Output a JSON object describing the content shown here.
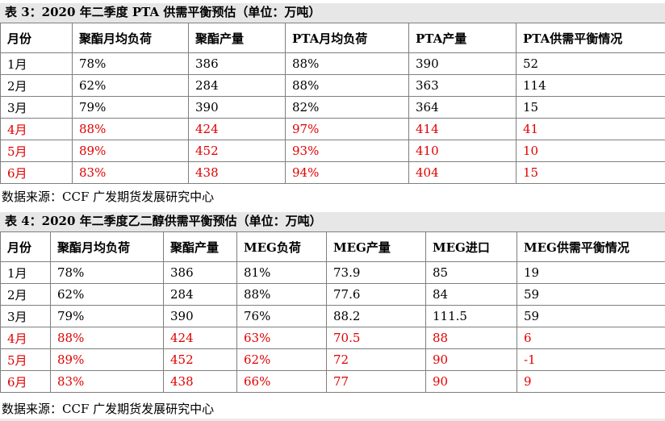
{
  "table1": {
    "title": "表 3：2020 年二季度 PTA 供需平衡预估（单位：万吨）",
    "headers": [
      "月份",
      "聚酯月均负荷",
      "聚酯产量",
      "PTA月均负荷",
      "PTA产量",
      "PTA供需平衡情况"
    ],
    "rows": [
      [
        "1月",
        "78%",
        "386",
        "88%",
        "390",
        "52"
      ],
      [
        "2月",
        "62%",
        "284",
        "88%",
        "363",
        "114"
      ],
      [
        "3月",
        "79%",
        "390",
        "82%",
        "364",
        "15"
      ],
      [
        "4月",
        "88%",
        "424",
        "97%",
        "414",
        "41"
      ],
      [
        "5月",
        "89%",
        "452",
        "93%",
        "410",
        "10"
      ],
      [
        "6月",
        "83%",
        "438",
        "94%",
        "404",
        "15"
      ]
    ],
    "source": "数据来源：CCF  广发期货发展研究中心"
  },
  "table2": {
    "title": "表 4：2020 年二季度乙二醇供需平衡预估（单位：万吨）",
    "headers": [
      "月份",
      "聚酯月均负荷",
      "聚酯产量",
      "MEG负荷",
      "MEG产量",
      "MEG进口",
      "MEG供需平衡情况"
    ],
    "rows": [
      [
        "1月",
        "78%",
        "386",
        "81%",
        "73.9",
        "85",
        "19"
      ],
      [
        "2月",
        "62%",
        "284",
        "88%",
        "77.6",
        "84",
        "59"
      ],
      [
        "3月",
        "79%",
        "390",
        "76%",
        "88.2",
        "111.5",
        "59"
      ],
      [
        "4月",
        "88%",
        "424",
        "63%",
        "70.5",
        "88",
        "6"
      ],
      [
        "5月",
        "89%",
        "452",
        "62%",
        "72",
        "90",
        "-1"
      ],
      [
        "6月",
        "83%",
        "438",
        "66%",
        "77",
        "90",
        "9"
      ]
    ],
    "source": "数据来源：CCF  广发期货发展研究中心"
  },
  "colors": {
    "highlight_text": "#e00000",
    "title_bar": "#e7e7e7",
    "border": "#7f7f7f"
  }
}
